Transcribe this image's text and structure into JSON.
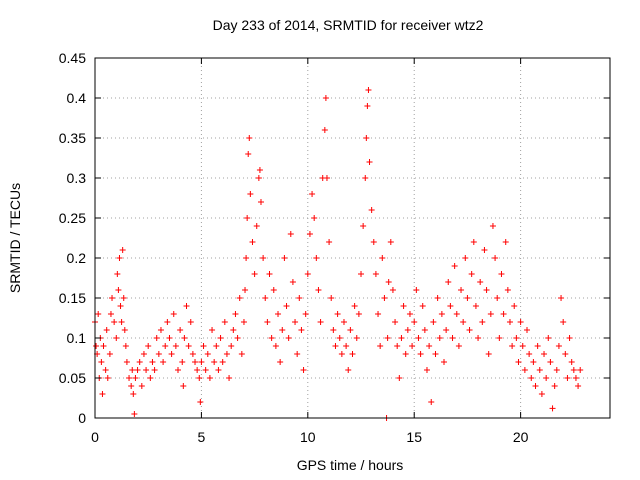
{
  "chart_data": {
    "type": "scatter",
    "title": "Day 233 of 2014, SRMTID for receiver wtz2",
    "xlabel": "GPS time / hours",
    "ylabel": "SRMTID / TECUs",
    "xlim": [
      0,
      24.2
    ],
    "ylim": [
      0,
      0.45
    ],
    "x_ticks": [
      0,
      5,
      10,
      15,
      20
    ],
    "x_tick_labels": [
      "0",
      "5",
      "10",
      "15",
      "20"
    ],
    "y_ticks": [
      0,
      0.05,
      0.1,
      0.15,
      0.2,
      0.25,
      0.3,
      0.35,
      0.4,
      0.45
    ],
    "y_tick_labels": [
      "0",
      "0.05",
      "0.1",
      "0.15",
      "0.2",
      "0.25",
      "0.3",
      "0.35",
      "0.4",
      "0.45"
    ],
    "grid": true,
    "marker": "plus",
    "color": "#ff0000",
    "series": [
      {
        "name": "SRMTID",
        "points": [
          [
            0.0,
            0.12
          ],
          [
            0.05,
            0.09
          ],
          [
            0.1,
            0.08
          ],
          [
            0.15,
            0.13
          ],
          [
            0.2,
            0.05
          ],
          [
            0.25,
            0.1
          ],
          [
            0.3,
            0.07
          ],
          [
            0.35,
            0.03
          ],
          [
            0.4,
            0.09
          ],
          [
            0.5,
            0.06
          ],
          [
            0.55,
            0.11
          ],
          [
            0.6,
            0.05
          ],
          [
            0.7,
            0.08
          ],
          [
            0.75,
            0.13
          ],
          [
            0.8,
            0.15
          ],
          [
            0.9,
            0.12
          ],
          [
            1.0,
            0.1
          ],
          [
            1.05,
            0.18
          ],
          [
            1.1,
            0.16
          ],
          [
            1.15,
            0.2
          ],
          [
            1.2,
            0.14
          ],
          [
            1.25,
            0.12
          ],
          [
            1.3,
            0.21
          ],
          [
            1.35,
            0.15
          ],
          [
            1.4,
            0.11
          ],
          [
            1.45,
            0.09
          ],
          [
            1.5,
            0.07
          ],
          [
            1.6,
            0.05
          ],
          [
            1.7,
            0.04
          ],
          [
            1.75,
            0.06
          ],
          [
            1.8,
            0.03
          ],
          [
            1.85,
            0.005
          ],
          [
            1.9,
            0.05
          ],
          [
            2.0,
            0.06
          ],
          [
            2.1,
            0.07
          ],
          [
            2.2,
            0.04
          ],
          [
            2.3,
            0.08
          ],
          [
            2.4,
            0.06
          ],
          [
            2.5,
            0.09
          ],
          [
            2.6,
            0.05
          ],
          [
            2.7,
            0.07
          ],
          [
            2.8,
            0.06
          ],
          [
            2.9,
            0.1
          ],
          [
            3.0,
            0.08
          ],
          [
            3.1,
            0.11
          ],
          [
            3.2,
            0.07
          ],
          [
            3.3,
            0.09
          ],
          [
            3.4,
            0.12
          ],
          [
            3.5,
            0.1
          ],
          [
            3.6,
            0.08
          ],
          [
            3.7,
            0.13
          ],
          [
            3.8,
            0.09
          ],
          [
            3.9,
            0.06
          ],
          [
            4.0,
            0.11
          ],
          [
            4.1,
            0.07
          ],
          [
            4.15,
            0.04
          ],
          [
            4.2,
            0.1
          ],
          [
            4.3,
            0.14
          ],
          [
            4.4,
            0.09
          ],
          [
            4.5,
            0.12
          ],
          [
            4.6,
            0.08
          ],
          [
            4.7,
            0.07
          ],
          [
            4.8,
            0.06
          ],
          [
            4.9,
            0.05
          ],
          [
            4.95,
            0.02
          ],
          [
            5.0,
            0.07
          ],
          [
            5.1,
            0.09
          ],
          [
            5.2,
            0.06
          ],
          [
            5.3,
            0.08
          ],
          [
            5.4,
            0.05
          ],
          [
            5.5,
            0.11
          ],
          [
            5.6,
            0.07
          ],
          [
            5.7,
            0.09
          ],
          [
            5.8,
            0.06
          ],
          [
            5.9,
            0.1
          ],
          [
            6.0,
            0.07
          ],
          [
            6.1,
            0.12
          ],
          [
            6.2,
            0.08
          ],
          [
            6.3,
            0.05
          ],
          [
            6.4,
            0.09
          ],
          [
            6.5,
            0.11
          ],
          [
            6.6,
            0.13
          ],
          [
            6.7,
            0.1
          ],
          [
            6.8,
            0.15
          ],
          [
            6.9,
            0.08
          ],
          [
            7.0,
            0.12
          ],
          [
            7.05,
            0.16
          ],
          [
            7.1,
            0.2
          ],
          [
            7.15,
            0.25
          ],
          [
            7.2,
            0.33
          ],
          [
            7.25,
            0.35
          ],
          [
            7.3,
            0.28
          ],
          [
            7.4,
            0.22
          ],
          [
            7.5,
            0.18
          ],
          [
            7.6,
            0.24
          ],
          [
            7.7,
            0.3
          ],
          [
            7.75,
            0.31
          ],
          [
            7.8,
            0.27
          ],
          [
            7.9,
            0.2
          ],
          [
            8.0,
            0.15
          ],
          [
            8.1,
            0.12
          ],
          [
            8.2,
            0.18
          ],
          [
            8.3,
            0.1
          ],
          [
            8.4,
            0.16
          ],
          [
            8.5,
            0.09
          ],
          [
            8.6,
            0.13
          ],
          [
            8.7,
            0.07
          ],
          [
            8.8,
            0.11
          ],
          [
            8.9,
            0.2
          ],
          [
            9.0,
            0.14
          ],
          [
            9.1,
            0.1
          ],
          [
            9.2,
            0.23
          ],
          [
            9.3,
            0.17
          ],
          [
            9.4,
            0.12
          ],
          [
            9.5,
            0.08
          ],
          [
            9.6,
            0.15
          ],
          [
            9.7,
            0.11
          ],
          [
            9.8,
            0.06
          ],
          [
            9.9,
            0.13
          ],
          [
            10.0,
            0.18
          ],
          [
            10.1,
            0.23
          ],
          [
            10.2,
            0.28
          ],
          [
            10.3,
            0.25
          ],
          [
            10.4,
            0.2
          ],
          [
            10.5,
            0.16
          ],
          [
            10.6,
            0.12
          ],
          [
            10.7,
            0.3
          ],
          [
            10.8,
            0.36
          ],
          [
            10.85,
            0.4
          ],
          [
            10.9,
            0.3
          ],
          [
            11.0,
            0.22
          ],
          [
            11.1,
            0.15
          ],
          [
            11.2,
            0.11
          ],
          [
            11.3,
            0.09
          ],
          [
            11.4,
            0.13
          ],
          [
            11.5,
            0.1
          ],
          [
            11.6,
            0.08
          ],
          [
            11.7,
            0.12
          ],
          [
            11.8,
            0.09
          ],
          [
            11.9,
            0.06
          ],
          [
            12.0,
            0.11
          ],
          [
            12.1,
            0.08
          ],
          [
            12.2,
            0.14
          ],
          [
            12.3,
            0.1
          ],
          [
            12.4,
            0.13
          ],
          [
            12.5,
            0.18
          ],
          [
            12.6,
            0.24
          ],
          [
            12.7,
            0.3
          ],
          [
            12.75,
            0.35
          ],
          [
            12.8,
            0.39
          ],
          [
            12.85,
            0.41
          ],
          [
            12.9,
            0.32
          ],
          [
            13.0,
            0.26
          ],
          [
            13.1,
            0.22
          ],
          [
            13.2,
            0.18
          ],
          [
            13.3,
            0.13
          ],
          [
            13.4,
            0.09
          ],
          [
            13.5,
            0.2
          ],
          [
            13.6,
            0.15
          ],
          [
            13.7,
            0.0
          ],
          [
            13.75,
            0.1
          ],
          [
            13.8,
            0.17
          ],
          [
            13.9,
            0.22
          ],
          [
            14.0,
            0.16
          ],
          [
            14.1,
            0.12
          ],
          [
            14.2,
            0.09
          ],
          [
            14.3,
            0.05
          ],
          [
            14.4,
            0.1
          ],
          [
            14.5,
            0.14
          ],
          [
            14.6,
            0.08
          ],
          [
            14.7,
            0.11
          ],
          [
            14.8,
            0.13
          ],
          [
            14.9,
            0.09
          ],
          [
            15.0,
            0.12
          ],
          [
            15.1,
            0.16
          ],
          [
            15.2,
            0.1
          ],
          [
            15.3,
            0.08
          ],
          [
            15.4,
            0.14
          ],
          [
            15.5,
            0.11
          ],
          [
            15.6,
            0.06
          ],
          [
            15.7,
            0.09
          ],
          [
            15.8,
            0.02
          ],
          [
            15.9,
            0.12
          ],
          [
            16.0,
            0.08
          ],
          [
            16.1,
            0.15
          ],
          [
            16.2,
            0.1
          ],
          [
            16.3,
            0.13
          ],
          [
            16.4,
            0.07
          ],
          [
            16.5,
            0.11
          ],
          [
            16.6,
            0.17
          ],
          [
            16.7,
            0.14
          ],
          [
            16.8,
            0.1
          ],
          [
            16.9,
            0.19
          ],
          [
            17.0,
            0.13
          ],
          [
            17.1,
            0.09
          ],
          [
            17.2,
            0.16
          ],
          [
            17.3,
            0.12
          ],
          [
            17.4,
            0.2
          ],
          [
            17.5,
            0.15
          ],
          [
            17.6,
            0.11
          ],
          [
            17.7,
            0.18
          ],
          [
            17.8,
            0.22
          ],
          [
            17.9,
            0.14
          ],
          [
            18.0,
            0.1
          ],
          [
            18.1,
            0.17
          ],
          [
            18.2,
            0.12
          ],
          [
            18.3,
            0.21
          ],
          [
            18.4,
            0.16
          ],
          [
            18.5,
            0.08
          ],
          [
            18.6,
            0.13
          ],
          [
            18.7,
            0.24
          ],
          [
            18.8,
            0.2
          ],
          [
            18.9,
            0.15
          ],
          [
            19.0,
            0.1
          ],
          [
            19.1,
            0.18
          ],
          [
            19.2,
            0.13
          ],
          [
            19.3,
            0.22
          ],
          [
            19.4,
            0.16
          ],
          [
            19.5,
            0.12
          ],
          [
            19.6,
            0.09
          ],
          [
            19.7,
            0.14
          ],
          [
            19.8,
            0.1
          ],
          [
            19.9,
            0.07
          ],
          [
            20.0,
            0.12
          ],
          [
            20.1,
            0.09
          ],
          [
            20.2,
            0.06
          ],
          [
            20.3,
            0.11
          ],
          [
            20.4,
            0.08
          ],
          [
            20.5,
            0.05
          ],
          [
            20.6,
            0.07
          ],
          [
            20.7,
            0.04
          ],
          [
            20.8,
            0.09
          ],
          [
            20.9,
            0.06
          ],
          [
            21.0,
            0.03
          ],
          [
            21.1,
            0.08
          ],
          [
            21.2,
            0.05
          ],
          [
            21.3,
            0.1
          ],
          [
            21.4,
            0.07
          ],
          [
            21.5,
            0.012
          ],
          [
            21.6,
            0.04
          ],
          [
            21.7,
            0.06
          ],
          [
            21.8,
            0.09
          ],
          [
            21.9,
            0.15
          ],
          [
            22.0,
            0.12
          ],
          [
            22.1,
            0.08
          ],
          [
            22.2,
            0.05
          ],
          [
            22.3,
            0.1
          ],
          [
            22.4,
            0.07
          ],
          [
            22.5,
            0.06
          ],
          [
            22.6,
            0.05
          ],
          [
            22.7,
            0.04
          ],
          [
            22.8,
            0.06
          ]
        ]
      }
    ]
  }
}
